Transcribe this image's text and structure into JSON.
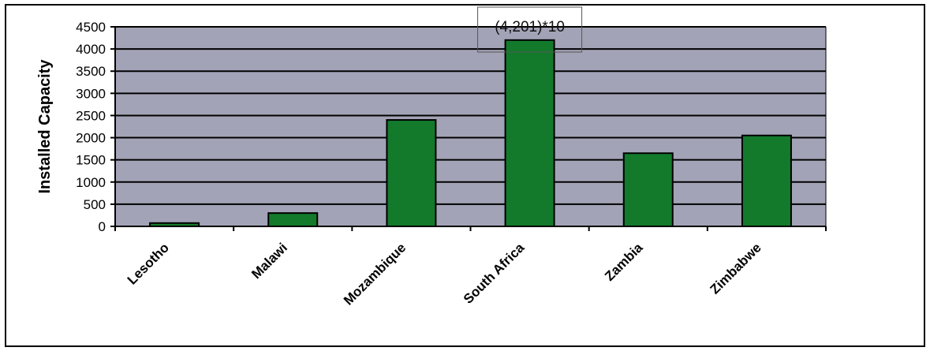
{
  "chart_data": {
    "type": "bar",
    "categories": [
      "Lesotho",
      "Malawi",
      "Mozambique",
      "South Africa",
      "Zambia",
      "Zimbabwe"
    ],
    "values": [
      75,
      300,
      2400,
      4201,
      1650,
      2050
    ],
    "ylabel": "Installed Capacity",
    "xlabel": "",
    "title": "",
    "ylim": [
      0,
      4500
    ],
    "yticks": [
      0,
      500,
      1000,
      1500,
      2000,
      2500,
      3000,
      3500,
      4000,
      4500
    ],
    "grid": true,
    "legend": "none",
    "annotation": {
      "category": "South Africa",
      "text": "(4,201)*10"
    },
    "colors": {
      "bar": "#137a2c",
      "bar_edge": "#000000",
      "plot_bg": "#a3a3b7",
      "grid": "#000000"
    }
  }
}
